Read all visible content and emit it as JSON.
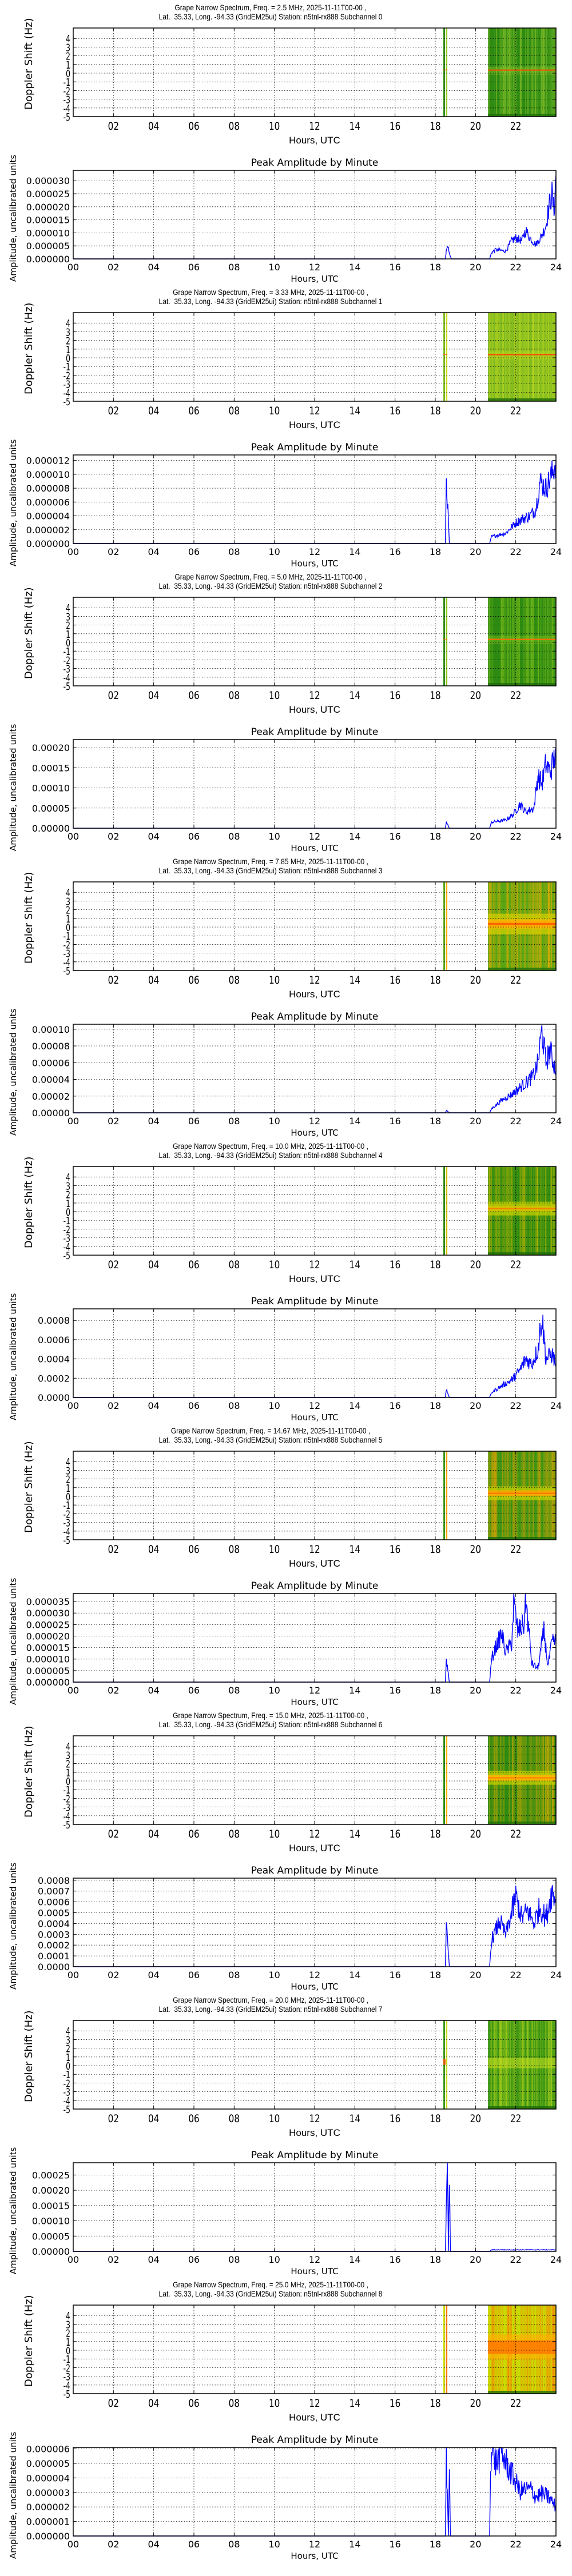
{
  "page": {
    "background": "#ffffff"
  },
  "common": {
    "spec_title_line1_template": "Grape Narrow Spectrum, Freq. = {freq} MHz, 2025-11-11T00-00 ,",
    "spec_title_line2_template": "Lat.  35.33, Long. -94.33 (GridEM25ui) Station: n5tnl-rx888 Subchannel {sub}",
    "spec_ylabel": "Doppler Shift (Hz)",
    "spec_xlabel": "Hours, UTC",
    "amp_title": "Peak Amplitude by Minute",
    "amp_ylabel": "Amplitude, uncalibrated units",
    "amp_xlabel": "Hours, UTC",
    "spec_xticks": [
      "02",
      "04",
      "06",
      "08",
      "10",
      "12",
      "14",
      "16",
      "18",
      "20",
      "22"
    ],
    "amp_xticks": [
      "00",
      "02",
      "04",
      "06",
      "08",
      "10",
      "12",
      "14",
      "16",
      "18",
      "20",
      "22",
      "24"
    ],
    "spec_yticks": [
      "4",
      "3",
      "2",
      "1",
      "0",
      "-1",
      "-2",
      "-3",
      "-4",
      "-5"
    ],
    "line_color": "#0000ff"
  },
  "channels": [
    {
      "index": 0,
      "freq": "2.5",
      "subchannel": "0",
      "spec_title_1": "Grape Narrow Spectrum, Freq. = 2.5 MHz, 2025-11-11T00-00 ,",
      "spec_title_2": "Lat.  35.33, Long. -94.33 (GridEM25ui) Station: n5tnl-rx888 Subchannel 0",
      "spec_base": "#2e8b12",
      "spec_band": "#9acd32",
      "spec_line": "#ff4500",
      "spec_style": "dark-line",
      "amp_yticks": [
        "0.000000",
        "0.000005",
        "0.000010",
        "0.000015",
        "0.000020",
        "0.000025",
        "0.000030"
      ],
      "amp_ymax": 3.4e-05,
      "amp_step": 5e-06
    },
    {
      "index": 1,
      "freq": "3.33",
      "subchannel": "1",
      "spec_title_1": "Grape Narrow Spectrum, Freq. = 3.33 MHz, 2025-11-11T00-00 ,",
      "spec_title_2": "Lat.  35.33, Long. -94.33 (GridEM25ui) Station: n5tnl-rx888 Subchannel 1",
      "spec_base": "#7fb820",
      "spec_band": "#c8e020",
      "spec_line": "#ff4500",
      "spec_style": "light-line",
      "amp_yticks": [
        "0.000000",
        "0.000002",
        "0.000004",
        "0.000006",
        "0.000008",
        "0.000010",
        "0.000012"
      ],
      "amp_ymax": 1.28e-05,
      "amp_step": 2e-06
    },
    {
      "index": 2,
      "freq": "5.0",
      "subchannel": "2",
      "spec_title_1": "Grape Narrow Spectrum, Freq. = 5.0 MHz, 2025-11-11T00-00 ,",
      "spec_title_2": "Lat.  35.33, Long. -94.33 (GridEM25ui) Station: n5tnl-rx888 Subchannel 2",
      "spec_base": "#2e8b12",
      "spec_band": "#8cc81e",
      "spec_line": "#ff6a00",
      "spec_style": "dark-line",
      "amp_yticks": [
        "0.00000",
        "0.00005",
        "0.00010",
        "0.00015",
        "0.00020"
      ],
      "amp_ymax": 0.00022,
      "amp_step": 5e-05
    },
    {
      "index": 3,
      "freq": "7.85",
      "subchannel": "3",
      "spec_title_1": "Grape Narrow Spectrum, Freq. = 7.85 MHz, 2025-11-11T00-00 ,",
      "spec_title_2": "Lat.  35.33, Long. -94.33 (GridEM25ui) Station: n5tnl-rx888 Subchannel 3",
      "spec_base": "#5aa514",
      "spec_band": "#ffb000",
      "spec_line": "#ff5000",
      "spec_style": "broad",
      "amp_yticks": [
        "0.00000",
        "0.00002",
        "0.00004",
        "0.00006",
        "0.00008",
        "0.00010"
      ],
      "amp_ymax": 0.000106,
      "amp_step": 2e-05
    },
    {
      "index": 4,
      "freq": "10.0",
      "subchannel": "4",
      "spec_title_1": "Grape Narrow Spectrum, Freq. = 10.0 MHz, 2025-11-11T00-00 ,",
      "spec_title_2": "Lat.  35.33, Long. -94.33 (GridEM25ui) Station: n5tnl-rx888 Subchannel 4",
      "spec_base": "#2e8b12",
      "spec_band": "#d4c000",
      "spec_line": "#ff7000",
      "spec_style": "band",
      "amp_yticks": [
        "0.0000",
        "0.0002",
        "0.0004",
        "0.0006",
        "0.0008"
      ],
      "amp_ymax": 0.00092,
      "amp_step": 0.0002
    },
    {
      "index": 5,
      "freq": "14.67",
      "subchannel": "5",
      "spec_title_1": "Grape Narrow Spectrum, Freq. = 14.67 MHz, 2025-11-11T00-00 ,",
      "spec_title_2": "Lat.  35.33, Long. -94.33 (GridEM25ui) Station: n5tnl-rx888 Subchannel 5",
      "spec_base": "#3c9614",
      "spec_band": "#ffa500",
      "spec_line": "#ff6000",
      "spec_style": "band",
      "amp_yticks": [
        "0.000000",
        "0.000005",
        "0.000010",
        "0.000015",
        "0.000020",
        "0.000025",
        "0.000030",
        "0.000035"
      ],
      "amp_ymax": 3.85e-05,
      "amp_step": 5e-06
    },
    {
      "index": 6,
      "freq": "15.0",
      "subchannel": "6",
      "spec_title_1": "Grape Narrow Spectrum, Freq. = 15.0 MHz, 2025-11-11T00-00 ,",
      "spec_title_2": "Lat.  35.33, Long. -94.33 (GridEM25ui) Station: n5tnl-rx888 Subchannel 6",
      "spec_base": "#2e8b12",
      "spec_band": "#ffb400",
      "spec_line": "#ff7000",
      "spec_style": "band",
      "amp_yticks": [
        "0.0000",
        "0.0001",
        "0.0002",
        "0.0003",
        "0.0004",
        "0.0005",
        "0.0006",
        "0.0007",
        "0.0008"
      ],
      "amp_ymax": 0.00082,
      "amp_step": 0.0001
    },
    {
      "index": 7,
      "freq": "20.0",
      "subchannel": "7",
      "spec_title_1": "Grape Narrow Spectrum, Freq. = 20.0 MHz, 2025-11-11T00-00 ,",
      "spec_title_2": "Lat.  35.33, Long. -94.33 (GridEM25ui) Station: n5tnl-rx888 Subchannel 7",
      "spec_base": "#3c9614",
      "spec_band": "#c8e020",
      "spec_line": "#c8e020",
      "spec_style": "faint",
      "amp_yticks": [
        "0.00000",
        "0.00005",
        "0.00010",
        "0.00015",
        "0.00020",
        "0.00025"
      ],
      "amp_ymax": 0.00029,
      "amp_step": 5e-05
    },
    {
      "index": 8,
      "freq": "25.0",
      "subchannel": "8",
      "spec_title_1": "Grape Narrow Spectrum, Freq. = 25.0 MHz, 2025-11-11T00-00 ,",
      "spec_title_2": "Lat.  35.33, Long. -94.33 (GridEM25ui) Station: n5tnl-rx888 Subchannel 8",
      "spec_base": "#c8dc00",
      "spec_band": "#ff7800",
      "spec_line": "#ff5000",
      "spec_style": "wide-orange",
      "amp_yticks": [
        "0.000000",
        "0.000001",
        "0.000002",
        "0.000003",
        "0.000004",
        "0.000005",
        "0.000006"
      ],
      "amp_ymax": 6.1e-06,
      "amp_step": 1e-06
    }
  ],
  "chart_data": [
    {
      "type": "heatmap",
      "title": "Grape Narrow Spectrum, Freq. = 2.5 MHz, 2025-11-11T00-00 , Lat.  35.33, Long. -94.33 (GridEM25ui) Station: n5tnl-rx888 Subchannel 0",
      "xlabel": "Hours, UTC",
      "ylabel": "Doppler Shift (Hz)",
      "xlim": [
        0,
        24
      ],
      "ylim": [
        -5,
        5
      ],
      "data_segments_hours": [
        [
          18.4,
          18.6
        ],
        [
          20.6,
          24
        ]
      ],
      "carrier_doppler_hz": 0
    },
    {
      "type": "line",
      "title": "Peak Amplitude by Minute",
      "xlabel": "Hours, UTC",
      "ylabel": "Amplitude, uncalibrated units",
      "xlim": [
        0,
        24
      ],
      "ylim": [
        0,
        3.4e-05
      ],
      "x": [
        0,
        18.5,
        18.6,
        18.7,
        18.8,
        20.7,
        20.8,
        21.0,
        21.5,
        21.8,
        22.0,
        22.3,
        22.5,
        22.7,
        23.0,
        23.3,
        23.5,
        23.7,
        23.8,
        23.9,
        24.0
      ],
      "values": [
        0,
        0,
        6e-06,
        2e-06,
        0,
        0,
        2.5e-06,
        3.5e-06,
        3e-06,
        7e-06,
        8e-06,
        7e-06,
        1.1e-05,
        8e-06,
        5.5e-06,
        9e-06,
        1.3e-05,
        2.2e-05,
        2.5e-05,
        1.8e-05,
        3.2e-05
      ]
    },
    {
      "type": "heatmap",
      "title": "Grape Narrow Spectrum, Freq. = 3.33 MHz, 2025-11-11T00-00 , Lat.  35.33, Long. -94.33 (GridEM25ui) Station: n5tnl-rx888 Subchannel 1",
      "xlabel": "Hours, UTC",
      "ylabel": "Doppler Shift (Hz)",
      "xlim": [
        0,
        24
      ],
      "ylim": [
        -5,
        5
      ],
      "data_segments_hours": [
        [
          18.4,
          18.6
        ],
        [
          20.6,
          24
        ]
      ],
      "carrier_doppler_hz": 0
    },
    {
      "type": "line",
      "title": "Peak Amplitude by Minute",
      "xlabel": "Hours, UTC",
      "ylabel": "Amplitude, uncalibrated units",
      "xlim": [
        0,
        24
      ],
      "ylim": [
        0,
        1.28e-05
      ],
      "x": [
        0,
        18.5,
        18.55,
        18.7,
        20.7,
        20.8,
        21.5,
        22.0,
        22.3,
        22.7,
        23.0,
        23.2,
        23.5,
        23.8,
        24.0
      ],
      "values": [
        0,
        0,
        9.5e-06,
        0,
        0,
        1e-06,
        1.5e-06,
        3e-06,
        3.5e-06,
        4e-06,
        5e-06,
        9e-06,
        8e-06,
        1e-05,
        1.2e-05
      ]
    },
    {
      "type": "heatmap",
      "title": "Grape Narrow Spectrum, Freq. = 5.0 MHz, 2025-11-11T00-00 , Lat.  35.33, Long. -94.33 (GridEM25ui) Station: n5tnl-rx888 Subchannel 2",
      "xlabel": "Hours, UTC",
      "ylabel": "Doppler Shift (Hz)",
      "xlim": [
        0,
        24
      ],
      "ylim": [
        -5,
        5
      ],
      "data_segments_hours": [
        [
          18.4,
          18.6
        ],
        [
          20.6,
          24
        ]
      ],
      "carrier_doppler_hz": 0
    },
    {
      "type": "line",
      "title": "Peak Amplitude by Minute",
      "xlabel": "Hours, UTC",
      "ylabel": "Amplitude, uncalibrated units",
      "xlim": [
        0,
        24
      ],
      "ylim": [
        0,
        0.00022
      ],
      "x": [
        0,
        18.5,
        18.55,
        18.7,
        20.7,
        20.8,
        21.5,
        21.9,
        22.2,
        22.5,
        22.9,
        23.1,
        23.3,
        23.5,
        23.7,
        23.9,
        24.0
      ],
      "values": [
        0,
        0,
        1.5e-05,
        0,
        0,
        1.5e-05,
        2e-05,
        3.5e-05,
        6e-05,
        4e-05,
        5e-05,
        0.00013,
        0.00011,
        0.00016,
        0.00014,
        0.00017,
        0.0002
      ]
    },
    {
      "type": "heatmap",
      "title": "Grape Narrow Spectrum, Freq. = 7.85 MHz, 2025-11-11T00-00 , Lat.  35.33, Long. -94.33 (GridEM25ui) Station: n5tnl-rx888 Subchannel 3",
      "xlabel": "Hours, UTC",
      "ylabel": "Doppler Shift (Hz)",
      "xlim": [
        0,
        24
      ],
      "ylim": [
        -5,
        5
      ],
      "data_segments_hours": [
        [
          18.4,
          18.6
        ],
        [
          20.6,
          24
        ]
      ],
      "carrier_doppler_hz": 0
    },
    {
      "type": "line",
      "title": "Peak Amplitude by Minute",
      "xlabel": "Hours, UTC",
      "ylabel": "Amplitude, uncalibrated units",
      "xlim": [
        0,
        24
      ],
      "ylim": [
        0,
        0.000106
      ],
      "x": [
        0,
        18.5,
        18.55,
        18.7,
        20.7,
        20.8,
        21.3,
        21.8,
        22.2,
        22.6,
        22.9,
        23.1,
        23.3,
        23.5,
        23.7,
        24.0
      ],
      "values": [
        0,
        0,
        3e-06,
        0,
        0,
        5e-06,
        1.5e-05,
        2.2e-05,
        3e-05,
        3.8e-05,
        4.5e-05,
        6e-05,
        9.8e-05,
        6e-05,
        7.5e-05,
        5e-05
      ]
    },
    {
      "type": "heatmap",
      "title": "Grape Narrow Spectrum, Freq. = 10.0 MHz, 2025-11-11T00-00 , Lat.  35.33, Long. -94.33 (GridEM25ui) Station: n5tnl-rx888 Subchannel 4",
      "xlabel": "Hours, UTC",
      "ylabel": "Doppler Shift (Hz)",
      "xlim": [
        0,
        24
      ],
      "ylim": [
        -5,
        5
      ],
      "data_segments_hours": [
        [
          18.4,
          18.6
        ],
        [
          20.6,
          24
        ]
      ],
      "carrier_doppler_hz": 0
    },
    {
      "type": "line",
      "title": "Peak Amplitude by Minute",
      "xlabel": "Hours, UTC",
      "ylabel": "Amplitude, uncalibrated units",
      "xlim": [
        0,
        24
      ],
      "ylim": [
        0,
        0.00092
      ],
      "x": [
        0,
        18.5,
        18.55,
        18.7,
        20.7,
        20.8,
        21.3,
        21.8,
        22.2,
        22.5,
        22.8,
        23.1,
        23.3,
        23.5,
        23.8,
        24.0
      ],
      "values": [
        0,
        0,
        8e-05,
        0,
        0,
        5e-05,
        0.00012,
        0.00018,
        0.00028,
        0.0004,
        0.00035,
        0.0005,
        0.00085,
        0.0004,
        0.00045,
        0.00035
      ]
    },
    {
      "type": "heatmap",
      "title": "Grape Narrow Spectrum, Freq. = 14.67 MHz, 2025-11-11T00-00 , Lat.  35.33, Long. -94.33 (GridEM25ui) Station: n5tnl-rx888 Subchannel 5",
      "xlabel": "Hours, UTC",
      "ylabel": "Doppler Shift (Hz)",
      "xlim": [
        0,
        24
      ],
      "ylim": [
        -5,
        5
      ],
      "data_segments_hours": [
        [
          18.4,
          18.6
        ],
        [
          20.6,
          24
        ]
      ],
      "carrier_doppler_hz": 0
    },
    {
      "type": "line",
      "title": "Peak Amplitude by Minute",
      "xlabel": "Hours, UTC",
      "ylabel": "Amplitude, uncalibrated units",
      "xlim": [
        0,
        24
      ],
      "ylim": [
        0,
        3.85e-05
      ],
      "x": [
        0,
        18.5,
        18.55,
        18.7,
        20.7,
        20.8,
        21.0,
        21.3,
        21.5,
        21.8,
        21.9,
        22.1,
        22.4,
        22.5,
        22.8,
        23.1,
        23.4,
        23.6,
        23.8,
        24.0
      ],
      "values": [
        0,
        0,
        1e-05,
        0,
        0,
        1e-05,
        1.5e-05,
        2.1e-05,
        1.3e-05,
        1.7e-05,
        3.4e-05,
        2.2e-05,
        2.5e-05,
        3.6e-05,
        8e-06,
        6e-06,
        2.2e-05,
        7e-06,
        1.7e-05,
        1.8e-05
      ]
    },
    {
      "type": "heatmap",
      "title": "Grape Narrow Spectrum, Freq. = 15.0 MHz, 2025-11-11T00-00 , Lat.  35.33, Long. -94.33 (GridEM25ui) Station: n5tnl-rx888 Subchannel 6",
      "xlabel": "Hours, UTC",
      "ylabel": "Doppler Shift (Hz)",
      "xlim": [
        0,
        24
      ],
      "ylim": [
        -5,
        5
      ],
      "data_segments_hours": [
        [
          18.4,
          18.6
        ],
        [
          20.6,
          24
        ]
      ],
      "carrier_doppler_hz": 0
    },
    {
      "type": "line",
      "title": "Peak Amplitude by Minute",
      "xlabel": "Hours, UTC",
      "ylabel": "Amplitude, uncalibrated units",
      "xlim": [
        0,
        24
      ],
      "ylim": [
        0,
        0.00082
      ],
      "x": [
        0,
        18.5,
        18.55,
        18.7,
        20.7,
        20.8,
        21.2,
        21.5,
        21.8,
        22.0,
        22.3,
        22.6,
        22.9,
        23.2,
        23.5,
        23.8,
        24.0
      ],
      "values": [
        0,
        0,
        0.00037,
        0,
        0,
        0.00025,
        0.00042,
        0.0003,
        0.0005,
        0.00065,
        0.00045,
        0.00052,
        0.0004,
        0.00055,
        0.00045,
        0.0007,
        0.00062
      ]
    },
    {
      "type": "heatmap",
      "title": "Grape Narrow Spectrum, Freq. = 20.0 MHz, 2025-11-11T00-00 , Lat.  35.33, Long. -94.33 (GridEM25ui) Station: n5tnl-rx888 Subchannel 7",
      "xlabel": "Hours, UTC",
      "ylabel": "Doppler Shift (Hz)",
      "xlim": [
        0,
        24
      ],
      "ylim": [
        -5,
        5
      ],
      "data_segments_hours": [
        [
          18.4,
          18.6
        ],
        [
          20.6,
          24
        ]
      ],
      "carrier_doppler_hz": 0
    },
    {
      "type": "line",
      "title": "Peak Amplitude by Minute",
      "xlabel": "Hours, UTC",
      "ylabel": "Amplitude, uncalibrated units",
      "xlim": [
        0,
        24
      ],
      "ylim": [
        0,
        0.00029
      ],
      "x": [
        0,
        18.5,
        18.55,
        18.6,
        18.65,
        18.7,
        18.75,
        20.7,
        20.8,
        24.0
      ],
      "values": [
        0,
        0,
        0.00016,
        0.00028,
        0,
        0.00026,
        0,
        0,
        5e-06,
        5e-06
      ]
    },
    {
      "type": "heatmap",
      "title": "Grape Narrow Spectrum, Freq. = 25.0 MHz, 2025-11-11T00-00 , Lat.  35.33, Long. -94.33 (GridEM25ui) Station: n5tnl-rx888 Subchannel 8",
      "xlabel": "Hours, UTC",
      "ylabel": "Doppler Shift (Hz)",
      "xlim": [
        0,
        24
      ],
      "ylim": [
        -5,
        5
      ],
      "data_segments_hours": [
        [
          18.4,
          18.6
        ],
        [
          20.6,
          24
        ]
      ],
      "carrier_doppler_hz": 0
    },
    {
      "type": "line",
      "title": "Peak Amplitude by Minute",
      "xlabel": "Hours, UTC",
      "ylabel": "Amplitude, uncalibrated units",
      "xlim": [
        0,
        24
      ],
      "ylim": [
        0,
        6.1e-06
      ],
      "x": [
        0,
        18.5,
        18.55,
        18.65,
        18.7,
        18.75,
        20.7,
        20.75,
        20.9,
        21.0,
        21.3,
        21.6,
        21.9,
        22.2,
        22.5,
        22.8,
        23.0,
        23.3,
        23.6,
        23.9,
        24.0
      ],
      "values": [
        0,
        0,
        5.5e-06,
        0,
        5e-06,
        0,
        0,
        5.5e-06,
        6e-06,
        5e-06,
        5.7e-06,
        4.8e-06,
        4e-06,
        3.1e-06,
        3.2e-06,
        3.2e-06,
        2.7e-06,
        2.9e-06,
        2.7e-06,
        2.2e-06,
        2e-06
      ]
    }
  ]
}
